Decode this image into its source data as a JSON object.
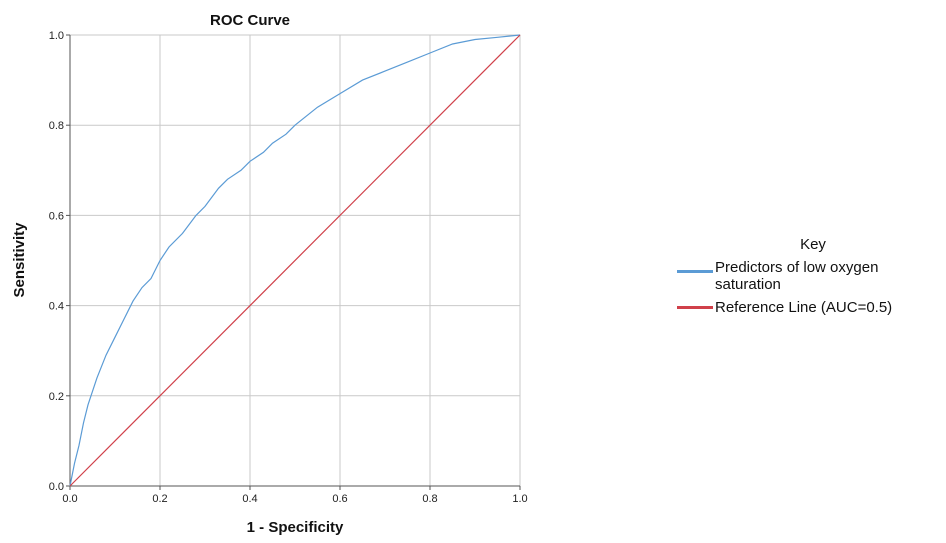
{
  "chart_data": {
    "type": "line",
    "title": "ROC Curve",
    "xlabel": "1 - Specificity",
    "ylabel": "Sensitivity",
    "xlim": [
      0,
      1
    ],
    "ylim": [
      0,
      1
    ],
    "x_ticks": [
      "0.0",
      "0.2",
      "0.4",
      "0.6",
      "0.8",
      "1.0"
    ],
    "y_ticks": [
      "0.0",
      "0.2",
      "0.4",
      "0.6",
      "0.8",
      "1.0"
    ],
    "grid": true,
    "legend_title": "Key",
    "legend_position": "right",
    "series": [
      {
        "name": "Predictors of low oxygen saturation",
        "color": "#5b9bd5",
        "x": [
          0,
          0.01,
          0.02,
          0.03,
          0.04,
          0.05,
          0.06,
          0.08,
          0.1,
          0.12,
          0.14,
          0.16,
          0.18,
          0.2,
          0.22,
          0.25,
          0.28,
          0.3,
          0.33,
          0.35,
          0.38,
          0.4,
          0.43,
          0.45,
          0.48,
          0.5,
          0.55,
          0.6,
          0.65,
          0.7,
          0.75,
          0.8,
          0.85,
          0.9,
          0.95,
          1.0
        ],
        "y": [
          0,
          0.05,
          0.09,
          0.14,
          0.18,
          0.21,
          0.24,
          0.29,
          0.33,
          0.37,
          0.41,
          0.44,
          0.46,
          0.5,
          0.53,
          0.56,
          0.6,
          0.62,
          0.66,
          0.68,
          0.7,
          0.72,
          0.74,
          0.76,
          0.78,
          0.8,
          0.84,
          0.87,
          0.9,
          0.92,
          0.94,
          0.96,
          0.98,
          0.99,
          0.995,
          1.0
        ]
      },
      {
        "name": "Reference Line (AUC=0.5)",
        "color": "#d0404a",
        "x": [
          0,
          1
        ],
        "y": [
          0,
          1
        ]
      }
    ]
  }
}
